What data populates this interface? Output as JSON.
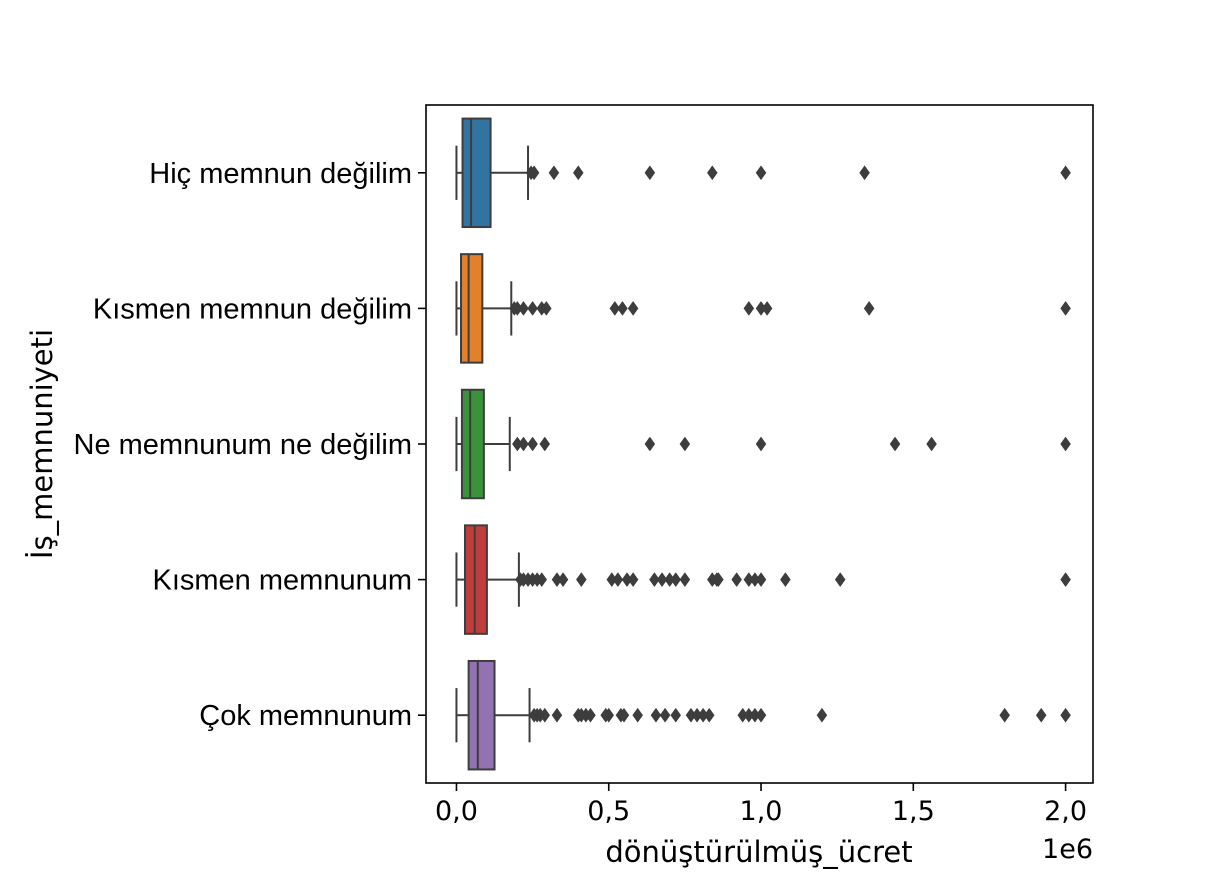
{
  "chart_data": {
    "type": "box",
    "orientation": "horizontal",
    "title": "",
    "xlabel": "dönüştürülmüş_ücret",
    "ylabel": "İş_memnuniyeti",
    "x_offset_label": "1e6",
    "xlim": [
      -0.1,
      2.09
    ],
    "xticks": [
      0.0,
      0.5,
      1.0,
      1.5,
      2.0
    ],
    "xtick_labels": [
      "0,0",
      "0,5",
      "1,0",
      "1,5",
      "2,0"
    ],
    "grid": false,
    "categories": [
      "Hiç memnun değilim",
      "Kısmen memnun değilim",
      "Ne memnunum ne değilim",
      "Kısmen memnunum",
      "Çok memnunum"
    ],
    "colors": [
      "#3274a1",
      "#e1812c",
      "#3a923a",
      "#c03d3e",
      "#9372b2"
    ],
    "edge_color": "#3d3d3d",
    "boxes": [
      {
        "min": 0.0,
        "q1": 0.02,
        "median": 0.048,
        "q3": 0.112,
        "max": 0.235,
        "outliers": [
          0.245,
          0.255,
          0.32,
          0.4,
          0.635,
          0.84,
          1.0,
          1.34,
          2.0
        ]
      },
      {
        "min": 0.0,
        "q1": 0.015,
        "median": 0.04,
        "q3": 0.085,
        "max": 0.18,
        "outliers": [
          0.19,
          0.2,
          0.22,
          0.25,
          0.28,
          0.295,
          0.52,
          0.545,
          0.58,
          0.96,
          1.0,
          1.02,
          1.355,
          2.0
        ]
      },
      {
        "min": 0.0,
        "q1": 0.018,
        "median": 0.045,
        "q3": 0.09,
        "max": 0.175,
        "outliers": [
          0.2,
          0.22,
          0.25,
          0.29,
          0.635,
          0.75,
          1.0,
          1.44,
          1.56,
          2.0
        ]
      },
      {
        "min": 0.0,
        "q1": 0.028,
        "median": 0.06,
        "q3": 0.1,
        "max": 0.205,
        "outliers": [
          0.21,
          0.22,
          0.235,
          0.25,
          0.265,
          0.28,
          0.33,
          0.35,
          0.41,
          0.51,
          0.53,
          0.56,
          0.58,
          0.65,
          0.675,
          0.7,
          0.72,
          0.75,
          0.84,
          0.855,
          0.86,
          0.92,
          0.96,
          0.98,
          1.0,
          1.08,
          1.26,
          2.0
        ]
      },
      {
        "min": 0.0,
        "q1": 0.04,
        "median": 0.07,
        "q3": 0.125,
        "max": 0.24,
        "outliers": [
          0.255,
          0.265,
          0.275,
          0.29,
          0.33,
          0.4,
          0.41,
          0.425,
          0.44,
          0.49,
          0.5,
          0.54,
          0.55,
          0.595,
          0.655,
          0.685,
          0.72,
          0.77,
          0.79,
          0.81,
          0.83,
          0.94,
          0.96,
          0.98,
          1.0,
          1.2,
          1.8,
          1.92,
          2.0
        ]
      }
    ]
  }
}
